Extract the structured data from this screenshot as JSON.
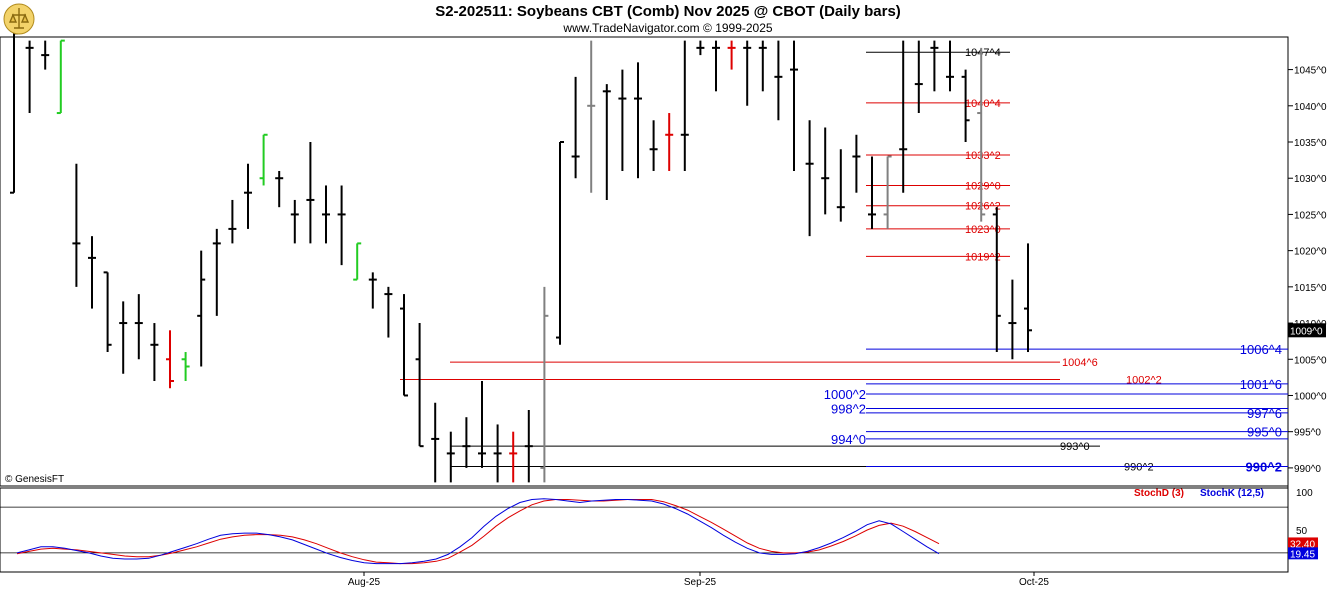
{
  "header": {
    "title": "S2-202511:  Soybeans CBT (Comb) Nov 2025 @ CBOT  (Daily bars)",
    "subtitle": "www.TradeNavigator.com © 1999-2025"
  },
  "footer": {
    "copyright": "© GenesisFT"
  },
  "colors": {
    "up_bar": "#000000",
    "down_bar": "#000000",
    "inside_bar": "#808080",
    "green_bar": "#22cc22",
    "red_bar": "#dd0000",
    "red_level": "#dd0000",
    "blue_level": "#0000dd",
    "black_level": "#000000",
    "stoch_d": "#dd0000",
    "stoch_k": "#0000dd",
    "grid": "#000000",
    "panel_bg": "#ffffff",
    "axis_bg": "#ffffff"
  },
  "chart_data": [
    {
      "type": "ohlc",
      "title": "S2-202511:  Soybeans CBT (Comb) Nov 2025 @ CBOT  (Daily bars)",
      "y_axis_ticks": [
        "1045^0",
        "1040^0",
        "1035^0",
        "1030^0",
        "1025^0",
        "1020^0",
        "1015^0",
        "1010^0",
        "1005^0",
        "1000^0",
        "995^0",
        "990^0"
      ],
      "y_axis_values": [
        1045,
        1040,
        1035,
        1030,
        1025,
        1020,
        1015,
        1010,
        1005,
        1000,
        995,
        990
      ],
      "ylim": [
        987.5,
        1049.5
      ],
      "x_axis_labels": [
        "Aug-25",
        "Sep-25",
        "Oct-25"
      ],
      "last_price_label": "1009^0",
      "last_price": 1009.0,
      "bars": [
        {
          "h": 1050,
          "l": 1028,
          "o": 1028,
          "c": 1050,
          "k": "b"
        },
        {
          "h": 1049,
          "l": 1039,
          "o": 1048,
          "c": 1048,
          "k": "b"
        },
        {
          "h": 1049,
          "l": 1045,
          "o": 1047,
          "c": 1047,
          "k": "b"
        },
        {
          "h": 1049,
          "l": 1039,
          "o": 1039,
          "c": 1049,
          "k": "g"
        },
        {
          "h": 1032,
          "l": 1015,
          "o": 1021,
          "c": 1021,
          "k": "b"
        },
        {
          "h": 1022,
          "l": 1012,
          "o": 1019,
          "c": 1019,
          "k": "b"
        },
        {
          "h": 1017,
          "l": 1006,
          "o": 1017,
          "c": 1007,
          "k": "b"
        },
        {
          "h": 1013,
          "l": 1003,
          "o": 1010,
          "c": 1010,
          "k": "b"
        },
        {
          "h": 1014,
          "l": 1005,
          "o": 1010,
          "c": 1010,
          "k": "b"
        },
        {
          "h": 1010,
          "l": 1002,
          "o": 1007,
          "c": 1007,
          "k": "b"
        },
        {
          "h": 1009,
          "l": 1001,
          "o": 1005,
          "c": 1002,
          "k": "r"
        },
        {
          "h": 1006,
          "l": 1002,
          "o": 1005,
          "c": 1004,
          "k": "g"
        },
        {
          "h": 1020,
          "l": 1004,
          "o": 1011,
          "c": 1016,
          "k": "b"
        },
        {
          "h": 1023,
          "l": 1011,
          "o": 1021,
          "c": 1021,
          "k": "b"
        },
        {
          "h": 1027,
          "l": 1021,
          "o": 1023,
          "c": 1023,
          "k": "b"
        },
        {
          "h": 1032,
          "l": 1023,
          "o": 1028,
          "c": 1028,
          "k": "b"
        },
        {
          "h": 1036,
          "l": 1029,
          "o": 1030,
          "c": 1036,
          "k": "g"
        },
        {
          "h": 1031,
          "l": 1026,
          "o": 1030,
          "c": 1030,
          "k": "b"
        },
        {
          "h": 1027,
          "l": 1021,
          "o": 1025,
          "c": 1025,
          "k": "b"
        },
        {
          "h": 1035,
          "l": 1021,
          "o": 1027,
          "c": 1027,
          "k": "b"
        },
        {
          "h": 1029,
          "l": 1021,
          "o": 1025,
          "c": 1025,
          "k": "b"
        },
        {
          "h": 1029,
          "l": 1018,
          "o": 1025,
          "c": 1025,
          "k": "b"
        },
        {
          "h": 1021,
          "l": 1016,
          "o": 1016,
          "c": 1021,
          "k": "g"
        },
        {
          "h": 1017,
          "l": 1012,
          "o": 1016,
          "c": 1016,
          "k": "b"
        },
        {
          "h": 1015,
          "l": 1008,
          "o": 1014,
          "c": 1014,
          "k": "b"
        },
        {
          "h": 1014,
          "l": 1000,
          "o": 1012,
          "c": 1000,
          "k": "b"
        },
        {
          "h": 1010,
          "l": 993,
          "o": 1005,
          "c": 993,
          "k": "b"
        },
        {
          "h": 999,
          "l": 988,
          "o": 994,
          "c": 994,
          "k": "b"
        },
        {
          "h": 995,
          "l": 988,
          "o": 992,
          "c": 992,
          "k": "b"
        },
        {
          "h": 997,
          "l": 990,
          "o": 993,
          "c": 993,
          "k": "b"
        },
        {
          "h": 1002,
          "l": 990,
          "o": 992,
          "c": 992,
          "k": "b"
        },
        {
          "h": 996,
          "l": 988,
          "o": 992,
          "c": 992,
          "k": "b"
        },
        {
          "h": 995,
          "l": 988,
          "o": 992,
          "c": 992,
          "k": "r"
        },
        {
          "h": 998,
          "l": 988,
          "o": 993,
          "c": 993,
          "k": "b"
        },
        {
          "h": 1015,
          "l": 988,
          "o": 990,
          "c": 1011,
          "k": "gy"
        },
        {
          "h": 1035,
          "l": 1007,
          "o": 1008,
          "c": 1035,
          "k": "b"
        },
        {
          "h": 1044,
          "l": 1030,
          "o": 1033,
          "c": 1033,
          "k": "b"
        },
        {
          "h": 1049,
          "l": 1028,
          "o": 1040,
          "c": 1040,
          "k": "gy"
        },
        {
          "h": 1043,
          "l": 1027,
          "o": 1042,
          "c": 1042,
          "k": "b"
        },
        {
          "h": 1045,
          "l": 1031,
          "o": 1041,
          "c": 1041,
          "k": "b"
        },
        {
          "h": 1046,
          "l": 1030,
          "o": 1041,
          "c": 1041,
          "k": "b"
        },
        {
          "h": 1038,
          "l": 1031,
          "o": 1034,
          "c": 1034,
          "k": "b"
        },
        {
          "h": 1039,
          "l": 1031,
          "o": 1036,
          "c": 1036,
          "k": "r"
        },
        {
          "h": 1049,
          "l": 1031,
          "o": 1036,
          "c": 1036,
          "k": "b"
        },
        {
          "h": 1049,
          "l": 1047,
          "o": 1048,
          "c": 1048,
          "k": "b"
        },
        {
          "h": 1049,
          "l": 1042,
          "o": 1048,
          "c": 1048,
          "k": "b"
        },
        {
          "h": 1049,
          "l": 1045,
          "o": 1048,
          "c": 1048,
          "k": "r"
        },
        {
          "h": 1049,
          "l": 1040,
          "o": 1048,
          "c": 1048,
          "k": "b"
        },
        {
          "h": 1049,
          "l": 1042,
          "o": 1048,
          "c": 1048,
          "k": "b"
        },
        {
          "h": 1049,
          "l": 1038,
          "o": 1044,
          "c": 1044,
          "k": "b"
        },
        {
          "h": 1049,
          "l": 1031,
          "o": 1045,
          "c": 1045,
          "k": "b"
        },
        {
          "h": 1038,
          "l": 1022,
          "o": 1032,
          "c": 1032,
          "k": "b"
        },
        {
          "h": 1037,
          "l": 1025,
          "o": 1030,
          "c": 1030,
          "k": "b"
        },
        {
          "h": 1034,
          "l": 1024,
          "o": 1026,
          "c": 1026,
          "k": "b"
        },
        {
          "h": 1036,
          "l": 1028,
          "o": 1033,
          "c": 1033,
          "k": "b"
        },
        {
          "h": 1033,
          "l": 1023,
          "o": 1025,
          "c": 1025,
          "k": "b"
        },
        {
          "h": 1033,
          "l": 1023,
          "o": 1025,
          "c": 1033,
          "k": "gy"
        },
        {
          "h": 1049,
          "l": 1028,
          "o": 1034,
          "c": 1034,
          "k": "b"
        },
        {
          "h": 1049,
          "l": 1039,
          "o": 1043,
          "c": 1043,
          "k": "b"
        },
        {
          "h": 1049,
          "l": 1042,
          "o": 1048,
          "c": 1048,
          "k": "b"
        },
        {
          "h": 1049,
          "l": 1042,
          "o": 1044,
          "c": 1044,
          "k": "b"
        },
        {
          "h": 1045,
          "l": 1035,
          "o": 1044,
          "c": 1038,
          "k": "b"
        },
        {
          "h": 1048,
          "l": 1024,
          "o": 1039,
          "c": 1025,
          "k": "gy"
        },
        {
          "h": 1026,
          "l": 1006,
          "o": 1025,
          "c": 1011,
          "k": "b"
        },
        {
          "h": 1016,
          "l": 1005,
          "o": 1010,
          "c": 1010,
          "k": "b"
        },
        {
          "h": 1021,
          "l": 1006,
          "o": 1012,
          "c": 1009,
          "k": "b"
        }
      ],
      "bar_colors_note": "k: b=black, g=green, r=red, gy=gray",
      "levels": [
        {
          "label": "1047^4",
          "value": 1047.4,
          "color": "black",
          "side": "right-top"
        },
        {
          "label": "1040^4",
          "value": 1040.4,
          "color": "red",
          "side": "right-top"
        },
        {
          "label": "1033^2",
          "value": 1033.2,
          "color": "red",
          "side": "right-top"
        },
        {
          "label": "1029^0",
          "value": 1029.0,
          "color": "red",
          "side": "right-top"
        },
        {
          "label": "1026^2",
          "value": 1026.2,
          "color": "red",
          "side": "right-top"
        },
        {
          "label": "1023^0",
          "value": 1023.0,
          "color": "red",
          "side": "right-top"
        },
        {
          "label": "1019^2",
          "value": 1019.2,
          "color": "red",
          "side": "right-top"
        },
        {
          "label": "1006^4",
          "value": 1006.4,
          "color": "blue",
          "side": "right-end"
        },
        {
          "label": "1004^6",
          "value": 1004.6,
          "color": "red",
          "side": "mid"
        },
        {
          "label": "1002^2",
          "value": 1002.2,
          "color": "red",
          "side": "mid"
        },
        {
          "label": "1001^6",
          "value": 1001.6,
          "color": "blue",
          "side": "right-end"
        },
        {
          "label": "1000^2",
          "value": 1000.2,
          "color": "blue",
          "side": "left"
        },
        {
          "label": "998^2",
          "value": 998.2,
          "color": "blue",
          "side": "left"
        },
        {
          "label": "997^6",
          "value": 997.6,
          "color": "blue",
          "side": "right-end"
        },
        {
          "label": "995^0",
          "value": 995.0,
          "color": "blue",
          "side": "right-end"
        },
        {
          "label": "994^0",
          "value": 994.0,
          "color": "blue",
          "side": "left"
        },
        {
          "label": "993^0",
          "value": 993.0,
          "color": "black",
          "side": "mid"
        },
        {
          "label": "990^2",
          "value": 990.2,
          "color": "black",
          "side": "mid"
        },
        {
          "label": "990^2",
          "value": 990.2,
          "color": "blue",
          "side": "right-end"
        }
      ]
    },
    {
      "type": "line",
      "title": "",
      "y_axis_ticks": [
        "100",
        "50"
      ],
      "y_axis_values": [
        100,
        50
      ],
      "ylim": [
        -5,
        105
      ],
      "reference_lines": [
        80,
        20
      ],
      "series": [
        {
          "name": "StochD (3)",
          "color": "#dd0000",
          "last_label": "32.40",
          "last": 32.4,
          "values": [
            19,
            22,
            25,
            26,
            25,
            24,
            22,
            20,
            18,
            16,
            15,
            15,
            17,
            20,
            24,
            28,
            33,
            38,
            41,
            43,
            44,
            44,
            43,
            41,
            37,
            32,
            26,
            20,
            15,
            11,
            8,
            7,
            6,
            6,
            7,
            9,
            13,
            21,
            30,
            42,
            55,
            66,
            75,
            83,
            88,
            90,
            90,
            89,
            88,
            88,
            89,
            90,
            90,
            90,
            87,
            82,
            76,
            68,
            60,
            51,
            42,
            33,
            26,
            22,
            20,
            20,
            21,
            24,
            29,
            35,
            42,
            50,
            56,
            59,
            55,
            48,
            40,
            32
          ]
        },
        {
          "name": "StochK (12,5)",
          "color": "#0000dd",
          "last_label": "19.45",
          "last": 19.45,
          "values": [
            20,
            24,
            28,
            28,
            26,
            23,
            20,
            16,
            13,
            12,
            12,
            13,
            17,
            22,
            27,
            32,
            38,
            43,
            45,
            46,
            46,
            44,
            41,
            37,
            31,
            25,
            19,
            14,
            10,
            7,
            6,
            6,
            6,
            7,
            9,
            12,
            18,
            28,
            40,
            55,
            68,
            78,
            86,
            90,
            91,
            90,
            88,
            86,
            88,
            89,
            90,
            90,
            89,
            88,
            84,
            78,
            71,
            62,
            53,
            43,
            34,
            26,
            20,
            18,
            18,
            19,
            22,
            27,
            33,
            40,
            48,
            57,
            62,
            58,
            48,
            38,
            28,
            19
          ]
        }
      ]
    }
  ]
}
